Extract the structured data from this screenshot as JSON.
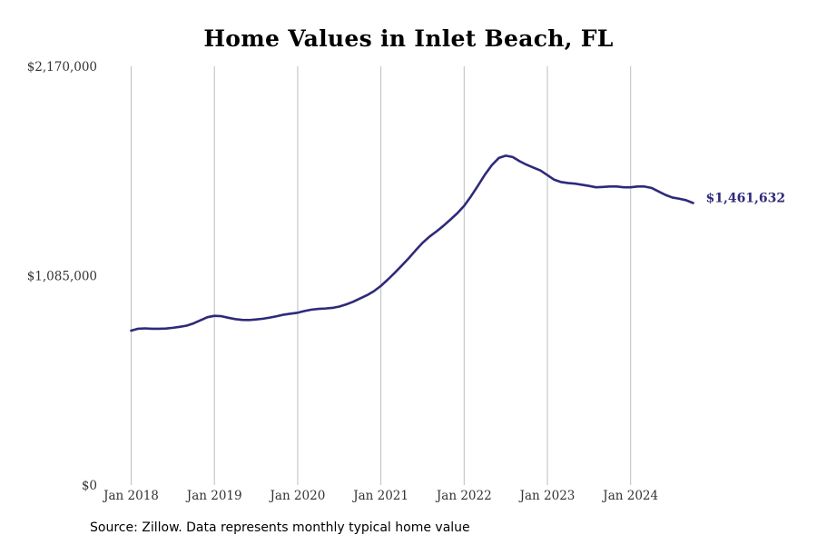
{
  "chart_data": {
    "type": "line",
    "title": "Home Values in Inlet Beach, FL",
    "source": "Source: Zillow. Data represents monthly typical home value",
    "xlabel": "",
    "ylabel": "",
    "ylim": [
      0,
      2170000
    ],
    "xlim": [
      "2018-01",
      "2024-12"
    ],
    "y_ticks": [
      {
        "value": 0,
        "label": "$0"
      },
      {
        "value": 1085000,
        "label": "$1,085,000"
      },
      {
        "value": 2170000,
        "label": "$2,170,000"
      }
    ],
    "x_ticks": [
      {
        "value": "2018-01",
        "label": "Jan 2018"
      },
      {
        "value": "2019-01",
        "label": "Jan 2019"
      },
      {
        "value": "2020-01",
        "label": "Jan 2020"
      },
      {
        "value": "2021-01",
        "label": "Jan 2021"
      },
      {
        "value": "2022-01",
        "label": "Jan 2022"
      },
      {
        "value": "2023-01",
        "label": "Jan 2023"
      },
      {
        "value": "2024-01",
        "label": "Jan 2024"
      }
    ],
    "grid": {
      "vertical": true,
      "horizontal": false
    },
    "line_color": "#2e2a7a",
    "grid_color": "#bdbdbd",
    "end_label": "$1,461,632",
    "series": [
      {
        "name": "",
        "x": [
          "2018-01",
          "2018-02",
          "2018-03",
          "2018-04",
          "2018-05",
          "2018-06",
          "2018-07",
          "2018-08",
          "2018-09",
          "2018-10",
          "2018-11",
          "2018-12",
          "2019-01",
          "2019-02",
          "2019-03",
          "2019-04",
          "2019-05",
          "2019-06",
          "2019-07",
          "2019-08",
          "2019-09",
          "2019-10",
          "2019-11",
          "2019-12",
          "2020-01",
          "2020-02",
          "2020-03",
          "2020-04",
          "2020-05",
          "2020-06",
          "2020-07",
          "2020-08",
          "2020-09",
          "2020-10",
          "2020-11",
          "2020-12",
          "2021-01",
          "2021-02",
          "2021-03",
          "2021-04",
          "2021-05",
          "2021-06",
          "2021-07",
          "2021-08",
          "2021-09",
          "2021-10",
          "2021-11",
          "2021-12",
          "2022-01",
          "2022-02",
          "2022-03",
          "2022-04",
          "2022-05",
          "2022-06",
          "2022-07",
          "2022-08",
          "2022-09",
          "2022-10",
          "2022-11",
          "2022-12",
          "2023-01",
          "2023-02",
          "2023-03",
          "2023-04",
          "2023-05",
          "2023-06",
          "2023-07",
          "2023-08",
          "2023-09",
          "2023-10",
          "2023-11",
          "2023-12",
          "2024-01",
          "2024-02",
          "2024-03",
          "2024-04",
          "2024-05",
          "2024-06",
          "2024-07",
          "2024-08",
          "2024-09",
          "2024-10"
        ],
        "values": [
          800000,
          810000,
          812000,
          810000,
          810000,
          811000,
          815000,
          820000,
          826000,
          838000,
          854000,
          870000,
          877000,
          875000,
          867000,
          860000,
          856000,
          855000,
          858000,
          862000,
          868000,
          875000,
          883000,
          888000,
          893000,
          902000,
          909000,
          913000,
          915000,
          918000,
          925000,
          936000,
          950000,
          967000,
          984000,
          1005000,
          1032000,
          1065000,
          1100000,
          1137000,
          1175000,
          1216000,
          1255000,
          1287000,
          1314000,
          1343000,
          1375000,
          1408000,
          1447000,
          1497000,
          1552000,
          1609000,
          1658000,
          1695000,
          1707000,
          1700000,
          1678000,
          1660000,
          1645000,
          1630000,
          1606000,
          1582000,
          1570000,
          1565000,
          1562000,
          1556000,
          1550000,
          1543000,
          1545000,
          1547000,
          1547000,
          1543000,
          1543000,
          1547000,
          1547000,
          1540000,
          1522000,
          1504000,
          1490000,
          1484000,
          1476000,
          1461632
        ]
      }
    ]
  }
}
